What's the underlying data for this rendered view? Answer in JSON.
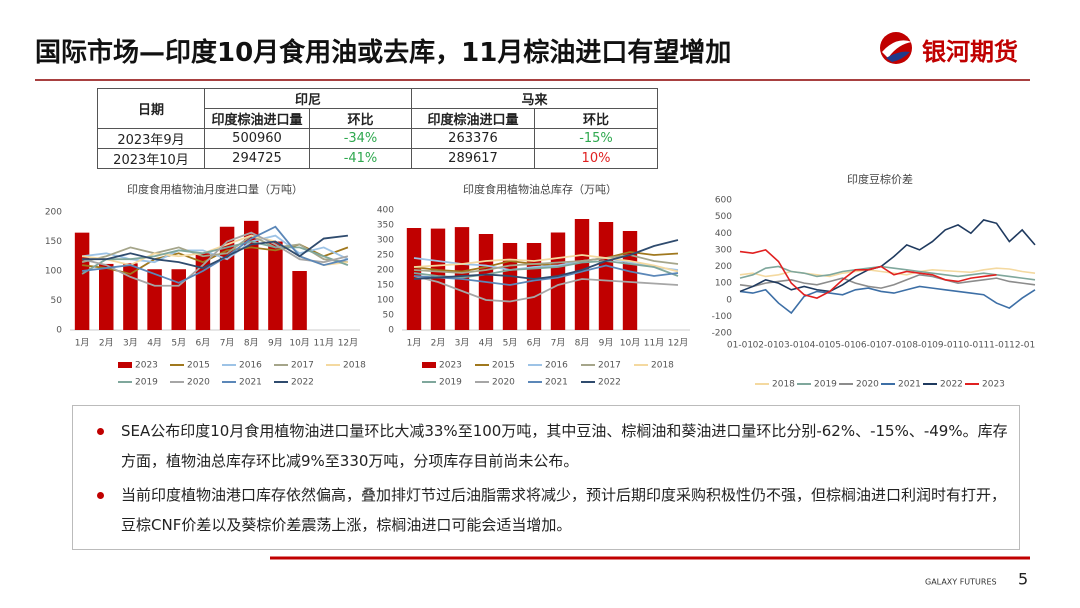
{
  "header": {
    "title": "国际市场—印度10月食用油或去库，11月棕油进口有望增加",
    "logo": "银河期货"
  },
  "table": {
    "header": [
      "日期",
      "印尼",
      "马来"
    ],
    "subheader": [
      "印度棕油进口量",
      "环比",
      "印度棕油进口量",
      "环比"
    ],
    "rows": [
      [
        "2023年9月",
        "500960",
        "-34%",
        "263376",
        "-15%"
      ],
      [
        "2023年10月",
        "294725",
        "-41%",
        "289617",
        "10%"
      ]
    ]
  },
  "chart_data": [
    {
      "type": "bar",
      "title": "印度食用植物油月度进口量（万吨）",
      "categories": [
        "1月",
        "2月",
        "3月",
        "4月",
        "5月",
        "6月",
        "7月",
        "8月",
        "9月",
        "10月",
        "11月",
        "12月"
      ],
      "ylim": [
        0,
        200
      ],
      "yticks": [
        0,
        50,
        100,
        150,
        200
      ],
      "grid": false,
      "series": [
        {
          "name": "2023",
          "type": "bar",
          "color": "#c00000",
          "values": [
            165,
            112,
            113,
            103,
            103,
            130,
            175,
            185,
            150,
            100,
            null,
            null
          ]
        },
        {
          "name": "2015",
          "type": "line",
          "color": "#a0781e",
          "values": [
            110,
            105,
            95,
            120,
            130,
            115,
            135,
            140,
            135,
            145,
            125,
            140
          ]
        },
        {
          "name": "2016",
          "type": "line",
          "color": "#9dc3e6",
          "values": [
            125,
            130,
            120,
            115,
            135,
            135,
            120,
            150,
            160,
            130,
            140,
            120
          ]
        },
        {
          "name": "2017",
          "type": "line",
          "color": "#a5a58a",
          "values": [
            115,
            125,
            140,
            130,
            140,
            125,
            130,
            160,
            140,
            145,
            120,
            115
          ]
        },
        {
          "name": "2018",
          "type": "line",
          "color": "#f4d9a0",
          "values": [
            125,
            120,
            110,
            130,
            125,
            130,
            145,
            160,
            150,
            125,
            110,
            115
          ]
        },
        {
          "name": "2019",
          "type": "line",
          "color": "#7fa79c",
          "values": [
            95,
            120,
            120,
            125,
            135,
            130,
            140,
            150,
            140,
            140,
            125,
            110
          ]
        },
        {
          "name": "2020",
          "type": "line",
          "color": "#a6a6a6",
          "values": [
            120,
            110,
            90,
            75,
            75,
            110,
            150,
            165,
            145,
            120,
            115,
            125
          ]
        },
        {
          "name": "2021",
          "type": "line",
          "color": "#5b87b8",
          "values": [
            100,
            105,
            110,
            95,
            80,
            100,
            125,
            155,
            175,
            125,
            110,
            120
          ]
        },
        {
          "name": "2022",
          "type": "line",
          "color": "#2f4b6e",
          "values": [
            120,
            120,
            130,
            120,
            115,
            105,
            125,
            145,
            150,
            125,
            155,
            160
          ]
        }
      ]
    },
    {
      "type": "bar",
      "title": "印度食用植物油总库存（万吨）",
      "categories": [
        "1月",
        "2月",
        "3月",
        "4月",
        "5月",
        "6月",
        "7月",
        "8月",
        "9月",
        "10月",
        "11月",
        "12月"
      ],
      "ylim": [
        0,
        400
      ],
      "yticks": [
        0,
        50,
        100,
        150,
        200,
        250,
        300,
        350,
        400
      ],
      "grid": false,
      "series": [
        {
          "name": "2023",
          "type": "bar",
          "color": "#c00000",
          "values": [
            340,
            338,
            343,
            320,
            290,
            290,
            325,
            370,
            360,
            330,
            null,
            null
          ]
        },
        {
          "name": "2015",
          "type": "line",
          "color": "#a0781e",
          "values": [
            210,
            200,
            195,
            210,
            230,
            220,
            215,
            230,
            240,
            260,
            250,
            255
          ]
        },
        {
          "name": "2016",
          "type": "line",
          "color": "#9dc3e6",
          "values": [
            240,
            230,
            220,
            215,
            200,
            210,
            215,
            230,
            240,
            225,
            210,
            200
          ]
        },
        {
          "name": "2017",
          "type": "line",
          "color": "#a5a58a",
          "values": [
            200,
            195,
            190,
            200,
            215,
            220,
            225,
            230,
            240,
            250,
            230,
            220
          ]
        },
        {
          "name": "2018",
          "type": "line",
          "color": "#f4d9a0",
          "values": [
            210,
            215,
            220,
            230,
            235,
            230,
            240,
            250,
            240,
            230,
            215,
            195
          ]
        },
        {
          "name": "2019",
          "type": "line",
          "color": "#7fa79c",
          "values": [
            190,
            180,
            175,
            185,
            200,
            205,
            210,
            225,
            230,
            220,
            210,
            180
          ]
        },
        {
          "name": "2020",
          "type": "line",
          "color": "#a6a6a6",
          "values": [
            180,
            160,
            130,
            100,
            95,
            110,
            150,
            170,
            165,
            160,
            155,
            150
          ]
        },
        {
          "name": "2021",
          "type": "line",
          "color": "#5b87b8",
          "values": [
            180,
            175,
            170,
            160,
            150,
            165,
            175,
            195,
            215,
            195,
            180,
            190
          ]
        },
        {
          "name": "2022",
          "type": "line",
          "color": "#2f4b6e",
          "values": [
            170,
            175,
            180,
            185,
            180,
            170,
            180,
            200,
            230,
            250,
            280,
            300
          ]
        }
      ]
    },
    {
      "type": "line",
      "title": "印度豆棕价差",
      "categories": [
        "01-01",
        null,
        "02-01",
        null,
        "03-01",
        null,
        "04-01",
        null,
        "05-01",
        null,
        "06-01",
        null,
        "07-01",
        null,
        "08-01",
        null,
        "09-01",
        null,
        "10-01",
        null,
        "11-01",
        null,
        "12-01",
        null
      ],
      "ylim": [
        -200,
        600
      ],
      "yticks": [
        -200,
        -100,
        0,
        100,
        200,
        300,
        400,
        500,
        600
      ],
      "grid": false,
      "series": [
        {
          "name": "2018",
          "color": "#f4d9a0",
          "values": [
            150,
            160,
            140,
            150,
            170,
            160,
            150,
            140,
            160,
            170,
            180,
            170,
            160,
            150,
            170,
            180,
            175,
            170,
            165,
            180,
            190,
            185,
            170,
            160
          ]
        },
        {
          "name": "2019",
          "color": "#7fa79c",
          "values": [
            130,
            150,
            190,
            200,
            170,
            160,
            140,
            150,
            170,
            180,
            190,
            200,
            190,
            180,
            170,
            160,
            150,
            140,
            150,
            160,
            150,
            140,
            130,
            120
          ]
        },
        {
          "name": "2020",
          "color": "#8c8c8c",
          "values": [
            90,
            80,
            100,
            110,
            120,
            100,
            90,
            110,
            130,
            100,
            80,
            70,
            90,
            120,
            150,
            140,
            120,
            100,
            110,
            120,
            130,
            110,
            100,
            90
          ]
        },
        {
          "name": "2021",
          "color": "#3d6fa6",
          "values": [
            50,
            40,
            60,
            -20,
            -80,
            20,
            50,
            40,
            30,
            60,
            70,
            50,
            40,
            60,
            80,
            70,
            60,
            50,
            40,
            30,
            -20,
            -50,
            10,
            60
          ]
        },
        {
          "name": "2022",
          "color": "#1f3a5f",
          "values": [
            50,
            80,
            120,
            100,
            60,
            80,
            60,
            50,
            90,
            140,
            180,
            200,
            260,
            330,
            300,
            350,
            420,
            450,
            400,
            480,
            460,
            350,
            420,
            330
          ]
        },
        {
          "name": "2023",
          "color": "#e02020",
          "values": [
            290,
            280,
            300,
            230,
            100,
            30,
            10,
            50,
            120,
            180,
            180,
            200,
            150,
            170,
            160,
            150,
            120,
            110,
            130,
            140,
            150,
            null,
            null,
            null
          ]
        }
      ]
    }
  ],
  "bullets": [
    "SEA公布印度10月食用植物油进口量环比大减33%至100万吨，其中豆油、棕榈油和葵油进口量环比分别-62%、-15%、-49%。库存方面，植物油总库存环比减9%至330万吨，分项库存目前尚未公布。",
    "当前印度植物油港口库存依然偏高，叠加排灯节过后油脂需求将减少，预计后期印度采购积极性仍不强，但棕榈油进口利润时有打开，豆棕CNF价差以及葵棕价差震荡上涨，棕榈油进口可能会适当增加。"
  ],
  "footer": {
    "brand": "GALAXY FUTURES",
    "page": "5"
  }
}
